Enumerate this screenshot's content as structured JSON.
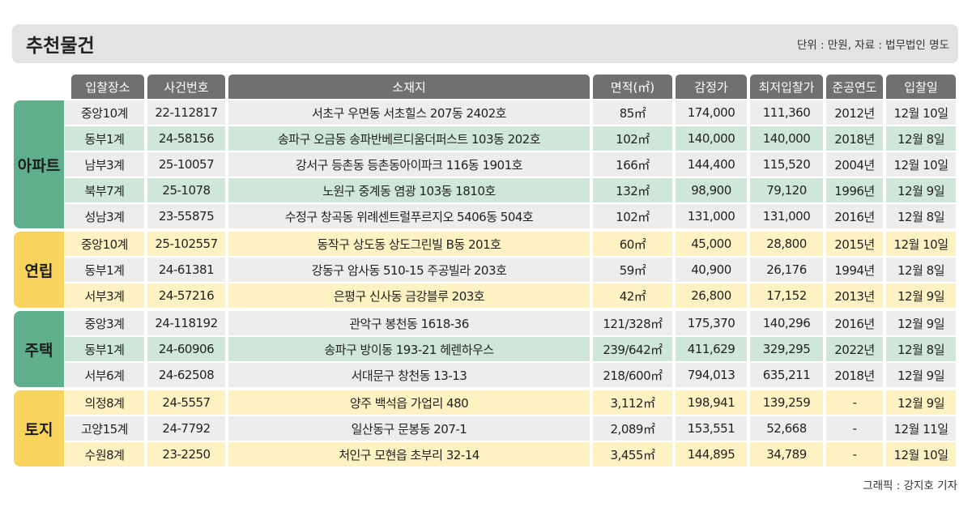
{
  "header": {
    "title": "추천물건",
    "note": "단위 : 만원, 자료 : 법무법인 명도"
  },
  "table": {
    "columns": [
      "입찰장소",
      "사건번호",
      "소재지",
      "면적(㎡)",
      "감정가",
      "최저입찰가",
      "준공연도",
      "입찰일"
    ],
    "groups": [
      {
        "label": "아파트",
        "theme": "green",
        "rows": [
          [
            "중앙10계",
            "22-112817",
            "서초구 우면동 서초힐스 207동 2402호",
            "85㎡",
            "174,000",
            "111,360",
            "2012년",
            "12월 10일"
          ],
          [
            "동부1계",
            "24-58156",
            "송파구 오금동 송파반베르디움더퍼스트 103동 202호",
            "102㎡",
            "140,000",
            "140,000",
            "2018년",
            "12월 8일"
          ],
          [
            "남부3계",
            "25-10057",
            "강서구 등촌동 등촌동아이파크 116동 1901호",
            "166㎡",
            "144,400",
            "115,520",
            "2004년",
            "12월 10일"
          ],
          [
            "북부7계",
            "25-1078",
            "노원구 중계동 염광 103동 1810호",
            "132㎡",
            "98,900",
            "79,120",
            "1996년",
            "12월 9일"
          ],
          [
            "성남3계",
            "23-55875",
            "수정구 창곡동 위례센트럴푸르지오 5406동 504호",
            "102㎡",
            "131,000",
            "131,000",
            "2016년",
            "12월 8일"
          ]
        ]
      },
      {
        "label": "연립",
        "theme": "yellow",
        "rows": [
          [
            "중앙10계",
            "25-102557",
            "동작구 상도동 상도그린빌 B동 201호",
            "60㎡",
            "45,000",
            "28,800",
            "2015년",
            "12월 10일"
          ],
          [
            "동부1계",
            "24-61381",
            "강동구 암사동 510-15 주공빌라 203호",
            "59㎡",
            "40,900",
            "26,176",
            "1994년",
            "12월 8일"
          ],
          [
            "서부3계",
            "24-57216",
            "은평구 신사동 금강블루 203호",
            "42㎡",
            "26,800",
            "17,152",
            "2013년",
            "12월 9일"
          ]
        ]
      },
      {
        "label": "주택",
        "theme": "green",
        "rows": [
          [
            "중앙3계",
            "24-118192",
            "관악구 봉천동 1618-36",
            "121/328㎡",
            "175,370",
            "140,296",
            "2016년",
            "12월 9일"
          ],
          [
            "동부1계",
            "24-60906",
            "송파구 방이동 193-21 헤렌하우스",
            "239/642㎡",
            "411,629",
            "329,295",
            "2022년",
            "12월 8일"
          ],
          [
            "서부6계",
            "24-62508",
            "서대문구 창천동 13-13",
            "218/600㎡",
            "794,013",
            "635,211",
            "2018년",
            "12월 9일"
          ]
        ]
      },
      {
        "label": "토지",
        "theme": "yellow",
        "rows": [
          [
            "의정8계",
            "24-5557",
            "양주 백석읍 가업리 480",
            "3,112㎡",
            "198,941",
            "139,259",
            "-",
            "12월 9일"
          ],
          [
            "고양15계",
            "24-7792",
            "일산동구 문봉동 207-1",
            "2,089㎡",
            "153,551",
            "52,668",
            "-",
            "12월 11일"
          ],
          [
            "수원8계",
            "23-2250",
            "처인구 모현읍 초부리 32-14",
            "3,455㎡",
            "144,895",
            "34,789",
            "-",
            "12월 10일"
          ]
        ]
      }
    ]
  },
  "footer": {
    "credit": "그래픽 : 강지호 기자"
  }
}
